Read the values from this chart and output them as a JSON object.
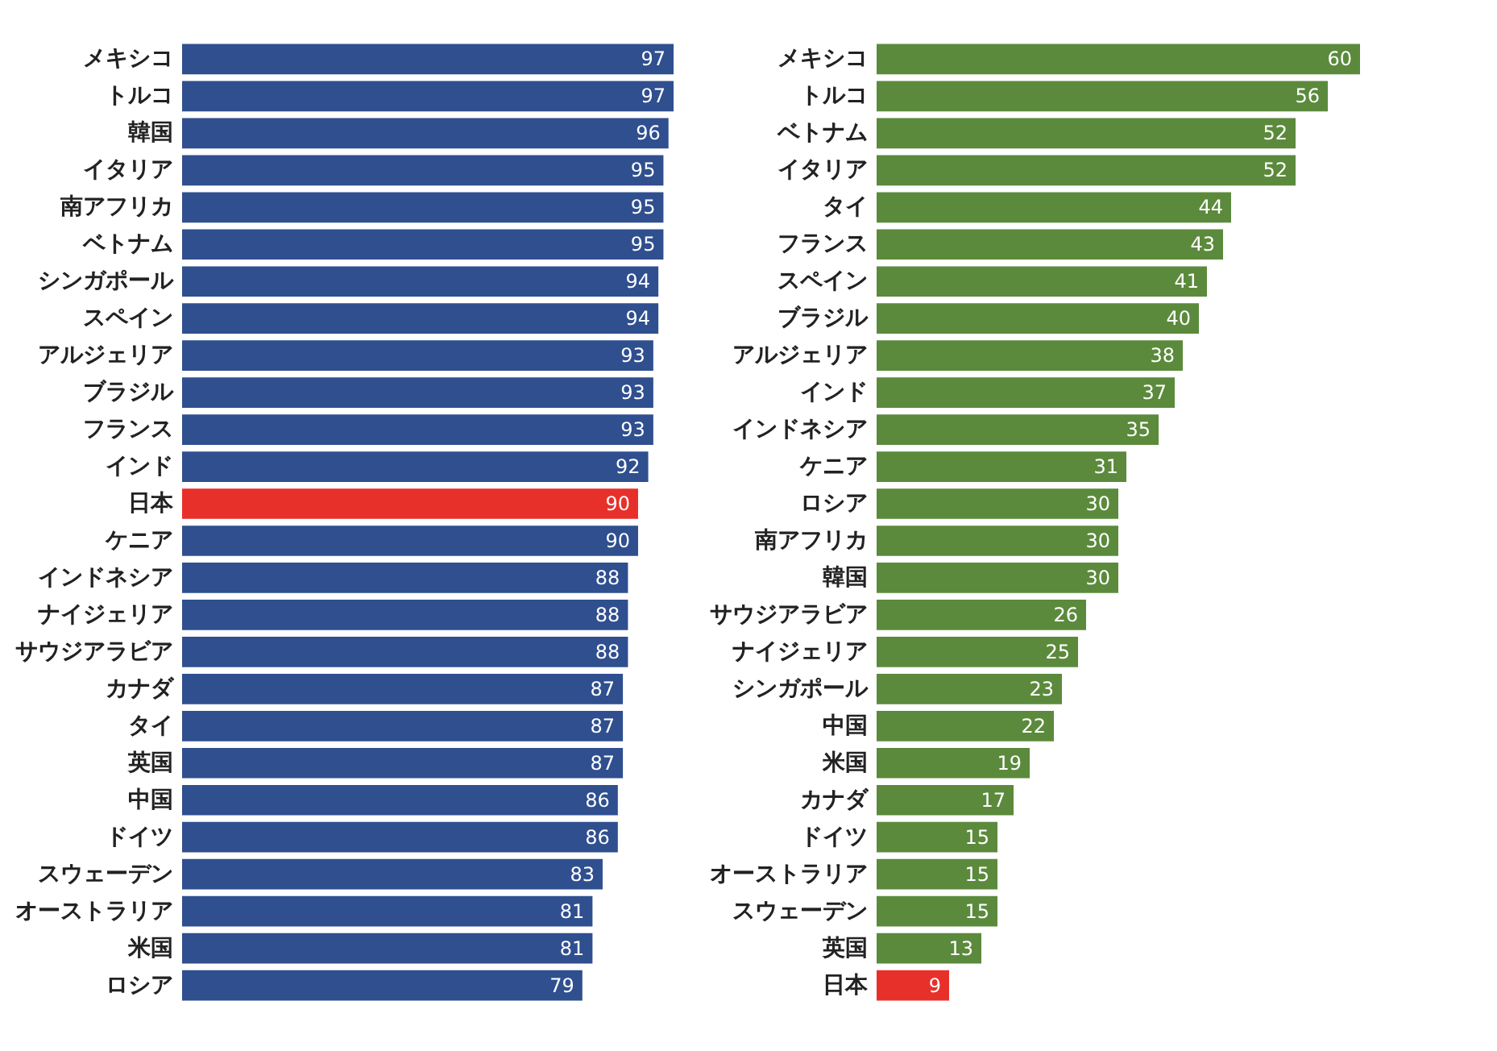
{
  "chart_data": [
    {
      "type": "bar",
      "orientation": "horizontal",
      "data_labels": true,
      "tick_labels": "y",
      "categories": [
        "メキシコ",
        "トルコ",
        "韓国",
        "イタリア",
        "南アフリカ",
        "ベトナム",
        "シンガポール",
        "スペイン",
        "アルジェリア",
        "ブラジル",
        "フランス",
        "インド",
        "日本",
        "ケニア",
        "インドネシア",
        "ナイジェリア",
        "サウジアラビア",
        "カナダ",
        "タイ",
        "英国",
        "中国",
        "ドイツ",
        "スウェーデン",
        "オーストラリア",
        "米国",
        "ロシア"
      ],
      "values": [
        97,
        97,
        96,
        95,
        95,
        95,
        94,
        94,
        93,
        93,
        93,
        92,
        90,
        90,
        88,
        88,
        88,
        87,
        87,
        87,
        86,
        86,
        83,
        81,
        81,
        79
      ],
      "colors": [
        "#2f4f8f",
        "#2f4f8f",
        "#2f4f8f",
        "#2f4f8f",
        "#2f4f8f",
        "#2f4f8f",
        "#2f4f8f",
        "#2f4f8f",
        "#2f4f8f",
        "#2f4f8f",
        "#2f4f8f",
        "#2f4f8f",
        "#e8302a",
        "#2f4f8f",
        "#2f4f8f",
        "#2f4f8f",
        "#2f4f8f",
        "#2f4f8f",
        "#2f4f8f",
        "#2f4f8f",
        "#2f4f8f",
        "#2f4f8f",
        "#2f4f8f",
        "#2f4f8f",
        "#2f4f8f",
        "#2f4f8f"
      ]
    },
    {
      "type": "bar",
      "orientation": "horizontal",
      "data_labels": true,
      "tick_labels": "y",
      "categories": [
        "メキシコ",
        "トルコ",
        "ベトナム",
        "イタリア",
        "タイ",
        "フランス",
        "スペイン",
        "ブラジル",
        "アルジェリア",
        "インド",
        "インドネシア",
        "ケニア",
        "ロシア",
        "南アフリカ",
        "韓国",
        "サウジアラビア",
        "ナイジェリア",
        "シンガポール",
        "中国",
        "米国",
        "カナダ",
        "ドイツ",
        "オーストラリア",
        "スウェーデン",
        "英国",
        "日本"
      ],
      "values": [
        60,
        56,
        52,
        52,
        44,
        43,
        41,
        40,
        38,
        37,
        35,
        31,
        30,
        30,
        30,
        26,
        25,
        23,
        22,
        19,
        17,
        15,
        15,
        15,
        13,
        9
      ],
      "colors": [
        "#5b8a3c",
        "#5b8a3c",
        "#5b8a3c",
        "#5b8a3c",
        "#5b8a3c",
        "#5b8a3c",
        "#5b8a3c",
        "#5b8a3c",
        "#5b8a3c",
        "#5b8a3c",
        "#5b8a3c",
        "#5b8a3c",
        "#5b8a3c",
        "#5b8a3c",
        "#5b8a3c",
        "#5b8a3c",
        "#5b8a3c",
        "#5b8a3c",
        "#5b8a3c",
        "#5b8a3c",
        "#5b8a3c",
        "#5b8a3c",
        "#5b8a3c",
        "#5b8a3c",
        "#5b8a3c",
        "#e8302a"
      ]
    }
  ]
}
